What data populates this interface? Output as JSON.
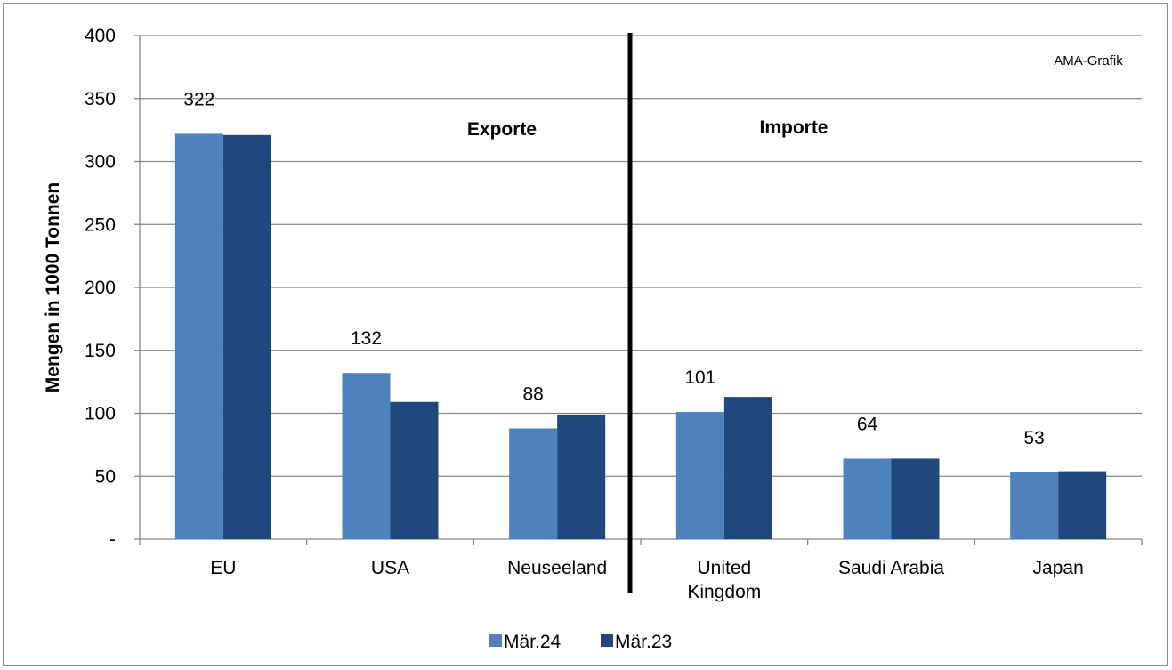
{
  "chart_data": {
    "type": "bar",
    "categories": [
      [
        "EU"
      ],
      [
        "USA"
      ],
      [
        "Neuseeland"
      ],
      [
        "United",
        "Kingdom"
      ],
      [
        "Saudi Arabia"
      ],
      [
        "Japan"
      ]
    ],
    "series": [
      {
        "name": "Mär.24",
        "color": "#4f81bd",
        "values": [
          322,
          132,
          88,
          101,
          64,
          53
        ]
      },
      {
        "name": "Mär.23",
        "color": "#1f497d",
        "values": [
          321,
          109,
          99,
          113,
          64,
          54
        ]
      }
    ],
    "data_labels": [
      "322",
      "132",
      "88",
      "101",
      "64",
      "53"
    ],
    "ylabel": "Mengen in 1000 Tonnen",
    "ylim": [
      0,
      400
    ],
    "y_ticks": [
      0,
      50,
      100,
      150,
      200,
      250,
      300,
      350,
      400
    ],
    "y_tick_labels": [
      "-",
      "50",
      "100",
      "150",
      "200",
      "250",
      "300",
      "350",
      "400"
    ],
    "grid": true,
    "legend_position": "bottom",
    "section_labels": {
      "left": "Exporte",
      "right": "Importe"
    },
    "credit": "AMA-Grafik",
    "grid_color": "#868686",
    "divider_color": "#000000"
  }
}
